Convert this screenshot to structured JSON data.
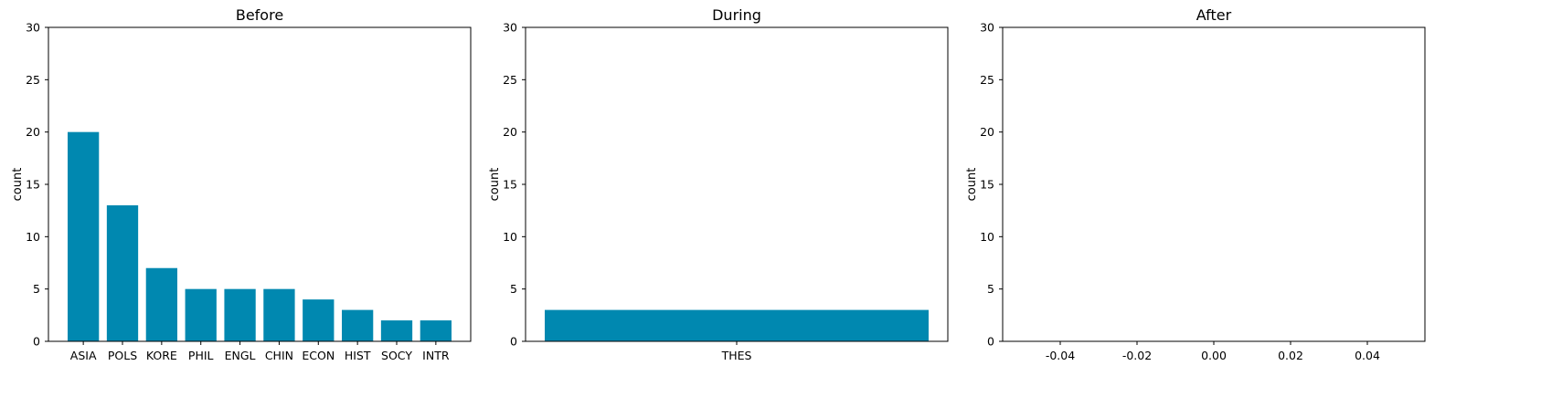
{
  "colors": {
    "bar": "#0088b0",
    "axis": "#000000"
  },
  "chart_data": [
    {
      "type": "bar",
      "title": "Before",
      "ylabel": "count",
      "xlabel": "",
      "ylim": [
        0,
        30
      ],
      "yticks": [
        0,
        5,
        10,
        15,
        20,
        25,
        30
      ],
      "categories": [
        "ASIA",
        "POLS",
        "KORE",
        "PHIL",
        "ENGL",
        "CHIN",
        "ECON",
        "HIST",
        "SOCY",
        "INTR"
      ],
      "values": [
        20,
        13,
        7,
        5,
        5,
        5,
        4,
        3,
        2,
        2
      ],
      "grid": false
    },
    {
      "type": "bar",
      "title": "During",
      "ylabel": "count",
      "xlabel": "",
      "ylim": [
        0,
        30
      ],
      "yticks": [
        0,
        5,
        10,
        15,
        20,
        25,
        30
      ],
      "categories": [
        "THES"
      ],
      "values": [
        3
      ],
      "grid": false
    },
    {
      "type": "bar",
      "title": "After",
      "ylabel": "count",
      "xlabel": "",
      "ylim": [
        0,
        30
      ],
      "yticks": [
        0,
        5,
        10,
        15,
        20,
        25,
        30
      ],
      "xlim": [
        -0.055,
        0.055
      ],
      "xticks": [
        "-0.04",
        "-0.02",
        "0.00",
        "0.02",
        "0.04"
      ],
      "xtick_values": [
        -0.04,
        -0.02,
        0.0,
        0.02,
        0.04
      ],
      "categories": [],
      "values": [],
      "grid": false
    }
  ]
}
